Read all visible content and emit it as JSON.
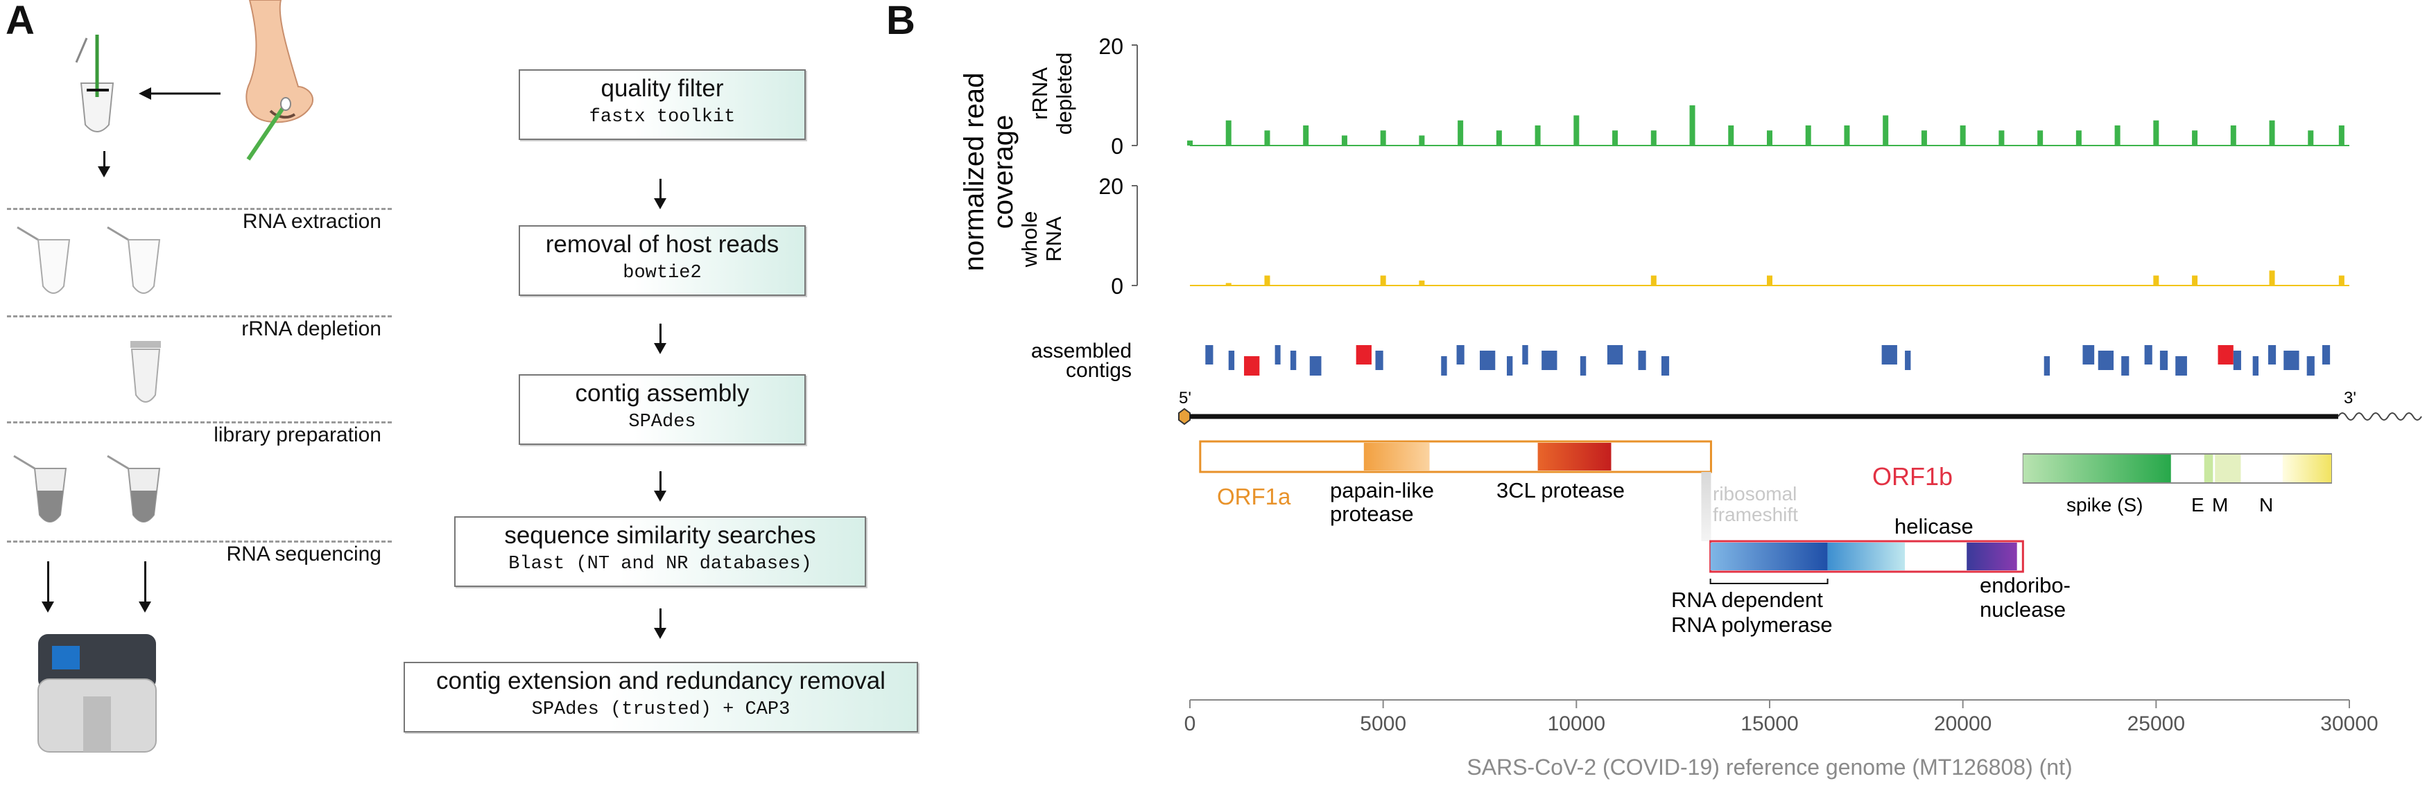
{
  "panel_a": {
    "letter": "A",
    "steps": [
      "RNA extraction",
      "rRNA depletion",
      "library preparation",
      "RNA sequencing"
    ],
    "pipeline": [
      {
        "title": "quality filter",
        "tool": "fastx toolkit"
      },
      {
        "title": "removal of host reads",
        "tool": "bowtie2"
      },
      {
        "title": "contig assembly",
        "tool": "SPAdes"
      },
      {
        "title": "sequence similarity searches",
        "tool": "Blast (NT and NR databases)"
      },
      {
        "title": "contig extension and redundancy removal",
        "tool": "SPAdes (trusted) + CAP3"
      }
    ]
  },
  "panel_b": {
    "letter": "B",
    "y_title_1": "normalized read",
    "y_title_2": "coverage",
    "track1_label_1": "rRNA",
    "track1_label_2": "depleted",
    "track2_label_1": "whole",
    "track2_label_2": "RNA",
    "contigs_label_1": "assembled",
    "contigs_label_2": "contigs",
    "y_tick_top": "20",
    "y_tick_bottom": "0",
    "five_prime": "5'",
    "three_prime": "3'",
    "genes": {
      "orf1a": "ORF1a",
      "papain_1": "papain-like",
      "papain_2": "protease",
      "cl_protease": "3CL protease",
      "frameshift_1": "ribosomal",
      "frameshift_2": "frameshift",
      "orf1b": "ORF1b",
      "helicase": "helicase",
      "rdrp_1": "RNA dependent",
      "rdrp_2": "RNA polymerase",
      "endo_1": "endoribo-",
      "endo_2": "nuclease",
      "spike": "spike (S)",
      "e": "E",
      "m": "M",
      "n": "N"
    },
    "x_axis_label": "SARS-CoV-2 (COVID-19) reference genome (MT126808) (nt)",
    "x_ticks": [
      "0",
      "5000",
      "10000",
      "15000",
      "20000",
      "25000",
      "30000"
    ],
    "colors": {
      "rrna_depleted": "#3cb44b",
      "whole_rna": "#f2c418",
      "contig": "#3b64ad",
      "contig_highlight": "#e8202a",
      "orf1a": "#e8922a",
      "orf1b": "#e23244"
    }
  },
  "chart_data": {
    "type": "area",
    "xlim": [
      0,
      30000
    ],
    "ylim": [
      0,
      20
    ],
    "xlabel": "SARS-CoV-2 (COVID-19) reference genome (MT126808) (nt)",
    "ylabel": "normalized read coverage",
    "series": [
      {
        "name": "rRNA depleted",
        "x": [
          0,
          1000,
          2000,
          3000,
          4000,
          5000,
          6000,
          7000,
          8000,
          9000,
          10000,
          11000,
          12000,
          13000,
          14000,
          15000,
          16000,
          17000,
          18000,
          19000,
          20000,
          21000,
          22000,
          23000,
          24000,
          25000,
          26000,
          27000,
          28000,
          29000,
          29800
        ],
        "values": [
          1,
          5,
          3,
          4,
          2,
          3,
          2,
          5,
          3,
          4,
          6,
          3,
          3,
          8,
          4,
          3,
          4,
          4,
          6,
          3,
          4,
          3,
          3,
          3,
          4,
          5,
          3,
          4,
          5,
          3,
          4
        ]
      },
      {
        "name": "whole RNA",
        "x": [
          0,
          1000,
          2000,
          3000,
          4000,
          5000,
          6000,
          7000,
          8000,
          9000,
          10000,
          11000,
          12000,
          13000,
          14000,
          15000,
          16000,
          17000,
          18000,
          19000,
          20000,
          21000,
          22000,
          23000,
          24000,
          25000,
          26000,
          27000,
          28000,
          29000,
          29800
        ],
        "values": [
          0,
          0.5,
          2,
          0,
          0,
          2,
          1,
          0,
          0,
          0,
          0,
          0,
          2,
          0,
          0,
          2,
          0,
          0,
          0,
          0,
          0,
          0,
          0,
          0,
          0,
          2,
          2,
          0,
          3,
          0,
          2
        ]
      }
    ],
    "contigs": [
      {
        "start": 400,
        "end": 600,
        "highlight": false
      },
      {
        "start": 1000,
        "end": 1150,
        "highlight": false
      },
      {
        "start": 1400,
        "end": 1800,
        "highlight": true
      },
      {
        "start": 2200,
        "end": 2300,
        "highlight": false
      },
      {
        "start": 2600,
        "end": 2750,
        "highlight": false
      },
      {
        "start": 3100,
        "end": 3400,
        "highlight": false
      },
      {
        "start": 4300,
        "end": 4700,
        "highlight": true
      },
      {
        "start": 4800,
        "end": 5000,
        "highlight": false
      },
      {
        "start": 6500,
        "end": 6650,
        "highlight": false
      },
      {
        "start": 6900,
        "end": 7100,
        "highlight": false
      },
      {
        "start": 7500,
        "end": 7900,
        "highlight": false
      },
      {
        "start": 8200,
        "end": 8350,
        "highlight": false
      },
      {
        "start": 8600,
        "end": 8750,
        "highlight": false
      },
      {
        "start": 9100,
        "end": 9500,
        "highlight": false
      },
      {
        "start": 10100,
        "end": 10250,
        "highlight": false
      },
      {
        "start": 10800,
        "end": 11200,
        "highlight": false
      },
      {
        "start": 11600,
        "end": 11800,
        "highlight": false
      },
      {
        "start": 12200,
        "end": 12400,
        "highlight": false
      },
      {
        "start": 17900,
        "end": 18300,
        "highlight": false
      },
      {
        "start": 18500,
        "end": 18650,
        "highlight": false
      },
      {
        "start": 22100,
        "end": 22250,
        "highlight": false
      },
      {
        "start": 23100,
        "end": 23400,
        "highlight": false
      },
      {
        "start": 23500,
        "end": 23900,
        "highlight": false
      },
      {
        "start": 24100,
        "end": 24300,
        "highlight": false
      },
      {
        "start": 24700,
        "end": 24900,
        "highlight": false
      },
      {
        "start": 25100,
        "end": 25300,
        "highlight": false
      },
      {
        "start": 25500,
        "end": 25800,
        "highlight": false
      },
      {
        "start": 26600,
        "end": 27000,
        "highlight": true
      },
      {
        "start": 27000,
        "end": 27200,
        "highlight": false
      },
      {
        "start": 27500,
        "end": 27650,
        "highlight": false
      },
      {
        "start": 27900,
        "end": 28100,
        "highlight": false
      },
      {
        "start": 28300,
        "end": 28700,
        "highlight": false
      },
      {
        "start": 28900,
        "end": 29100,
        "highlight": false
      },
      {
        "start": 29300,
        "end": 29500,
        "highlight": false
      }
    ],
    "genes": [
      {
        "name": "ORF1a",
        "start": 266,
        "end": 13483
      },
      {
        "name": "papain-like protease",
        "start": 4500,
        "end": 6200
      },
      {
        "name": "3CL protease",
        "start": 9000,
        "end": 10900
      },
      {
        "name": "ORF1b",
        "start": 13468,
        "end": 21555
      },
      {
        "name": "RNA dependent RNA polymerase",
        "start": 13468,
        "end": 16500
      },
      {
        "name": "helicase",
        "start": 16500,
        "end": 18500
      },
      {
        "name": "endoribonuclease",
        "start": 20100,
        "end": 21400
      },
      {
        "name": "spike (S)",
        "start": 21563,
        "end": 25384
      },
      {
        "name": "E",
        "start": 26245,
        "end": 26472
      },
      {
        "name": "M",
        "start": 26523,
        "end": 27191
      },
      {
        "name": "N",
        "start": 28274,
        "end": 29533
      }
    ]
  }
}
